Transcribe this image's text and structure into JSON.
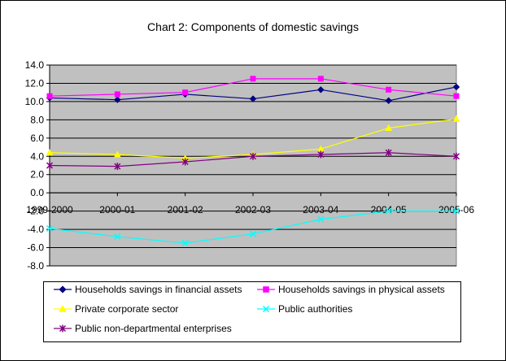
{
  "chart_data": {
    "type": "line",
    "title": "Chart 2: Components of domestic savings",
    "xlabel": "",
    "ylabel": "",
    "categories": [
      "1999-2000",
      "2000-01",
      "2001-02",
      "2002-03",
      "2003-04",
      "2004-05",
      "2005-06"
    ],
    "ylim": [
      -8,
      14
    ],
    "yticks": [
      "14.0",
      "12.0",
      "10.0",
      "8.0",
      "6.0",
      "4.0",
      "2.0",
      "0.0",
      "-2.0",
      "-4.0",
      "-6.0",
      "-8.0"
    ],
    "grid": true,
    "legend_position": "bottom",
    "series": [
      {
        "name": "Households savings in financial assets",
        "color": "#000080",
        "marker": "diamond",
        "values": [
          10.4,
          10.2,
          10.8,
          10.3,
          11.3,
          10.1,
          11.6
        ]
      },
      {
        "name": "Households savings in physical assets",
        "color": "#ff00ff",
        "marker": "square",
        "values": [
          10.6,
          10.8,
          11.0,
          12.5,
          12.5,
          11.3,
          10.6
        ]
      },
      {
        "name": "Private corporate sector",
        "color": "#ffff00",
        "marker": "triangle",
        "values": [
          4.4,
          4.2,
          3.8,
          4.2,
          4.8,
          7.1,
          8.1
        ]
      },
      {
        "name": "Public authorities",
        "color": "#00ffff",
        "marker": "x",
        "values": [
          -3.9,
          -4.8,
          -5.5,
          -4.5,
          -2.9,
          -2.0,
          -2.0
        ]
      },
      {
        "name": "Public non-departmental enterprises",
        "color": "#800080",
        "marker": "star",
        "values": [
          3.0,
          2.9,
          3.4,
          4.0,
          4.2,
          4.4,
          4.0
        ]
      }
    ]
  }
}
